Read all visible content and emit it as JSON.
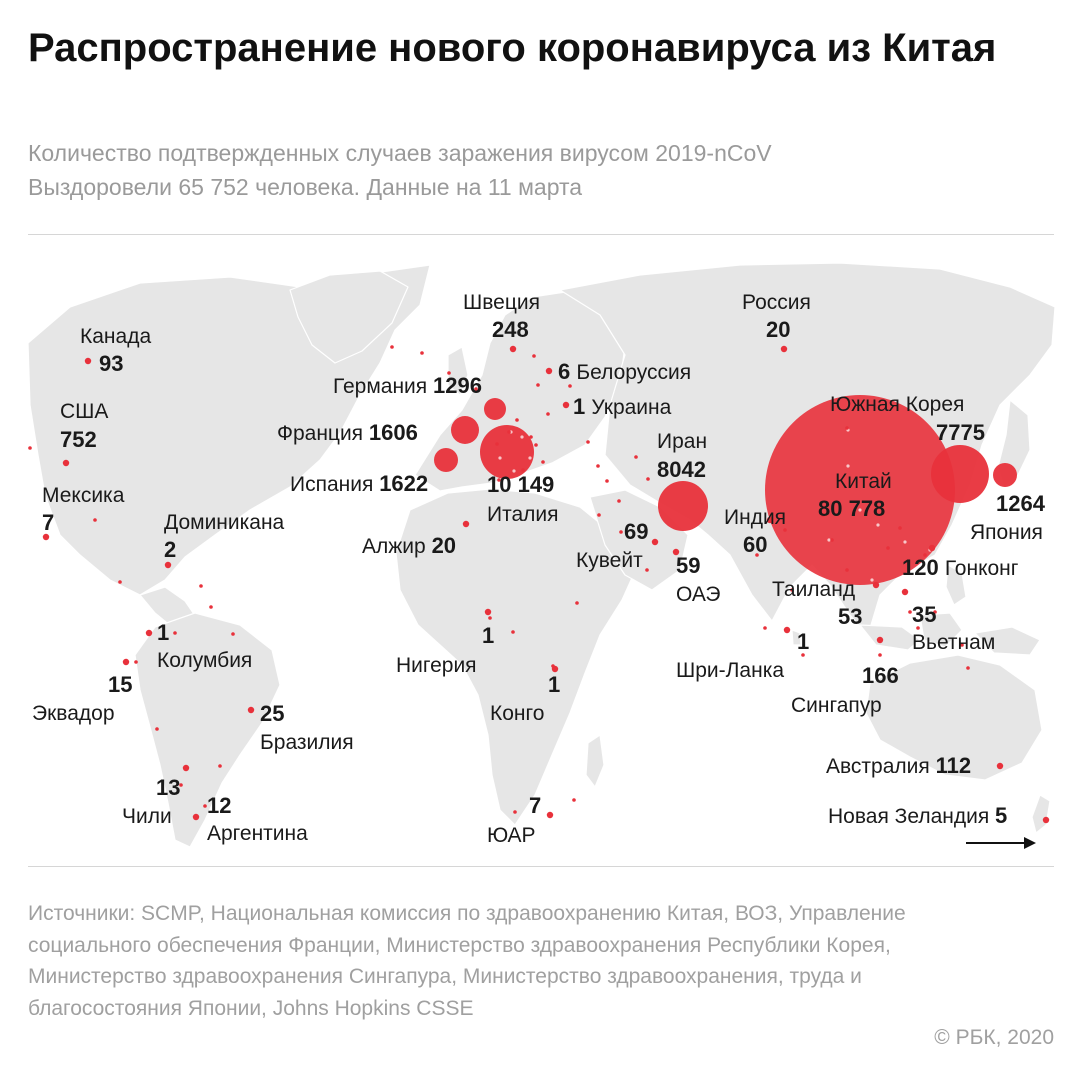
{
  "title": "Распространение нового коронавируса из Китая",
  "subtitle_line1": "Количество подтвержденных случаев заражения вирусом 2019-nCoV",
  "subtitle_line2": "Выздоровели 65 752 человека. Данные на 11 марта",
  "sources": "Источники: SCMP, Национальная комиссия по здравоохранению Китая, ВОЗ, Управление социального обеспечения Франции, Министерство здравоохранения Республики Корея, Министерство здравоохранения Сингапура, Министерство здравоохранения, труда и благосостояния Японии, Johns Hopkins CSSE",
  "copyright": "© РБК, 2020",
  "colors": {
    "marker": "#e8313b",
    "land": "#e8e8e8",
    "text": "#1a1a1a",
    "muted": "#9a9a9a"
  },
  "countries": [
    {
      "name": "Канада",
      "value": "93"
    },
    {
      "name": "США",
      "value": "752"
    },
    {
      "name": "Мексика",
      "value": "7"
    },
    {
      "name": "Доминикана",
      "value": "2"
    },
    {
      "name": "Колумбия",
      "value": "1"
    },
    {
      "name": "Эквадор",
      "value": "15"
    },
    {
      "name": "Бразилия",
      "value": "25"
    },
    {
      "name": "Чили",
      "value": "13"
    },
    {
      "name": "Аргентина",
      "value": "12"
    },
    {
      "name": "Швеция",
      "value": "248"
    },
    {
      "name": "Германия",
      "value": "1296"
    },
    {
      "name": "Франция",
      "value": "1606"
    },
    {
      "name": "Испания",
      "value": "1622"
    },
    {
      "name": "Италия",
      "value": "10 149"
    },
    {
      "name": "Белоруссия",
      "value": "6"
    },
    {
      "name": "Украина",
      "value": "1"
    },
    {
      "name": "Алжир",
      "value": "20"
    },
    {
      "name": "Нигерия",
      "value": "1"
    },
    {
      "name": "Конго",
      "value": "1"
    },
    {
      "name": "ЮАР",
      "value": "7"
    },
    {
      "name": "Россия",
      "value": "20"
    },
    {
      "name": "Иран",
      "value": "8042"
    },
    {
      "name": "Кувейт",
      "value": "69"
    },
    {
      "name": "ОАЭ",
      "value": "59"
    },
    {
      "name": "Индия",
      "value": "60"
    },
    {
      "name": "Шри-Ланка",
      "value": "1"
    },
    {
      "name": "Таиланд",
      "value": "53"
    },
    {
      "name": "Китай",
      "value": "80 778"
    },
    {
      "name": "Южная Корея",
      "value": "7775"
    },
    {
      "name": "Япония",
      "value": "1264"
    },
    {
      "name": "Гонконг",
      "value": "120"
    },
    {
      "name": "Вьетнам",
      "value": "35"
    },
    {
      "name": "Сингапур",
      "value": "166"
    },
    {
      "name": "Австралия",
      "value": "112"
    },
    {
      "name": "Новая Зеландия",
      "value": "5"
    }
  ]
}
